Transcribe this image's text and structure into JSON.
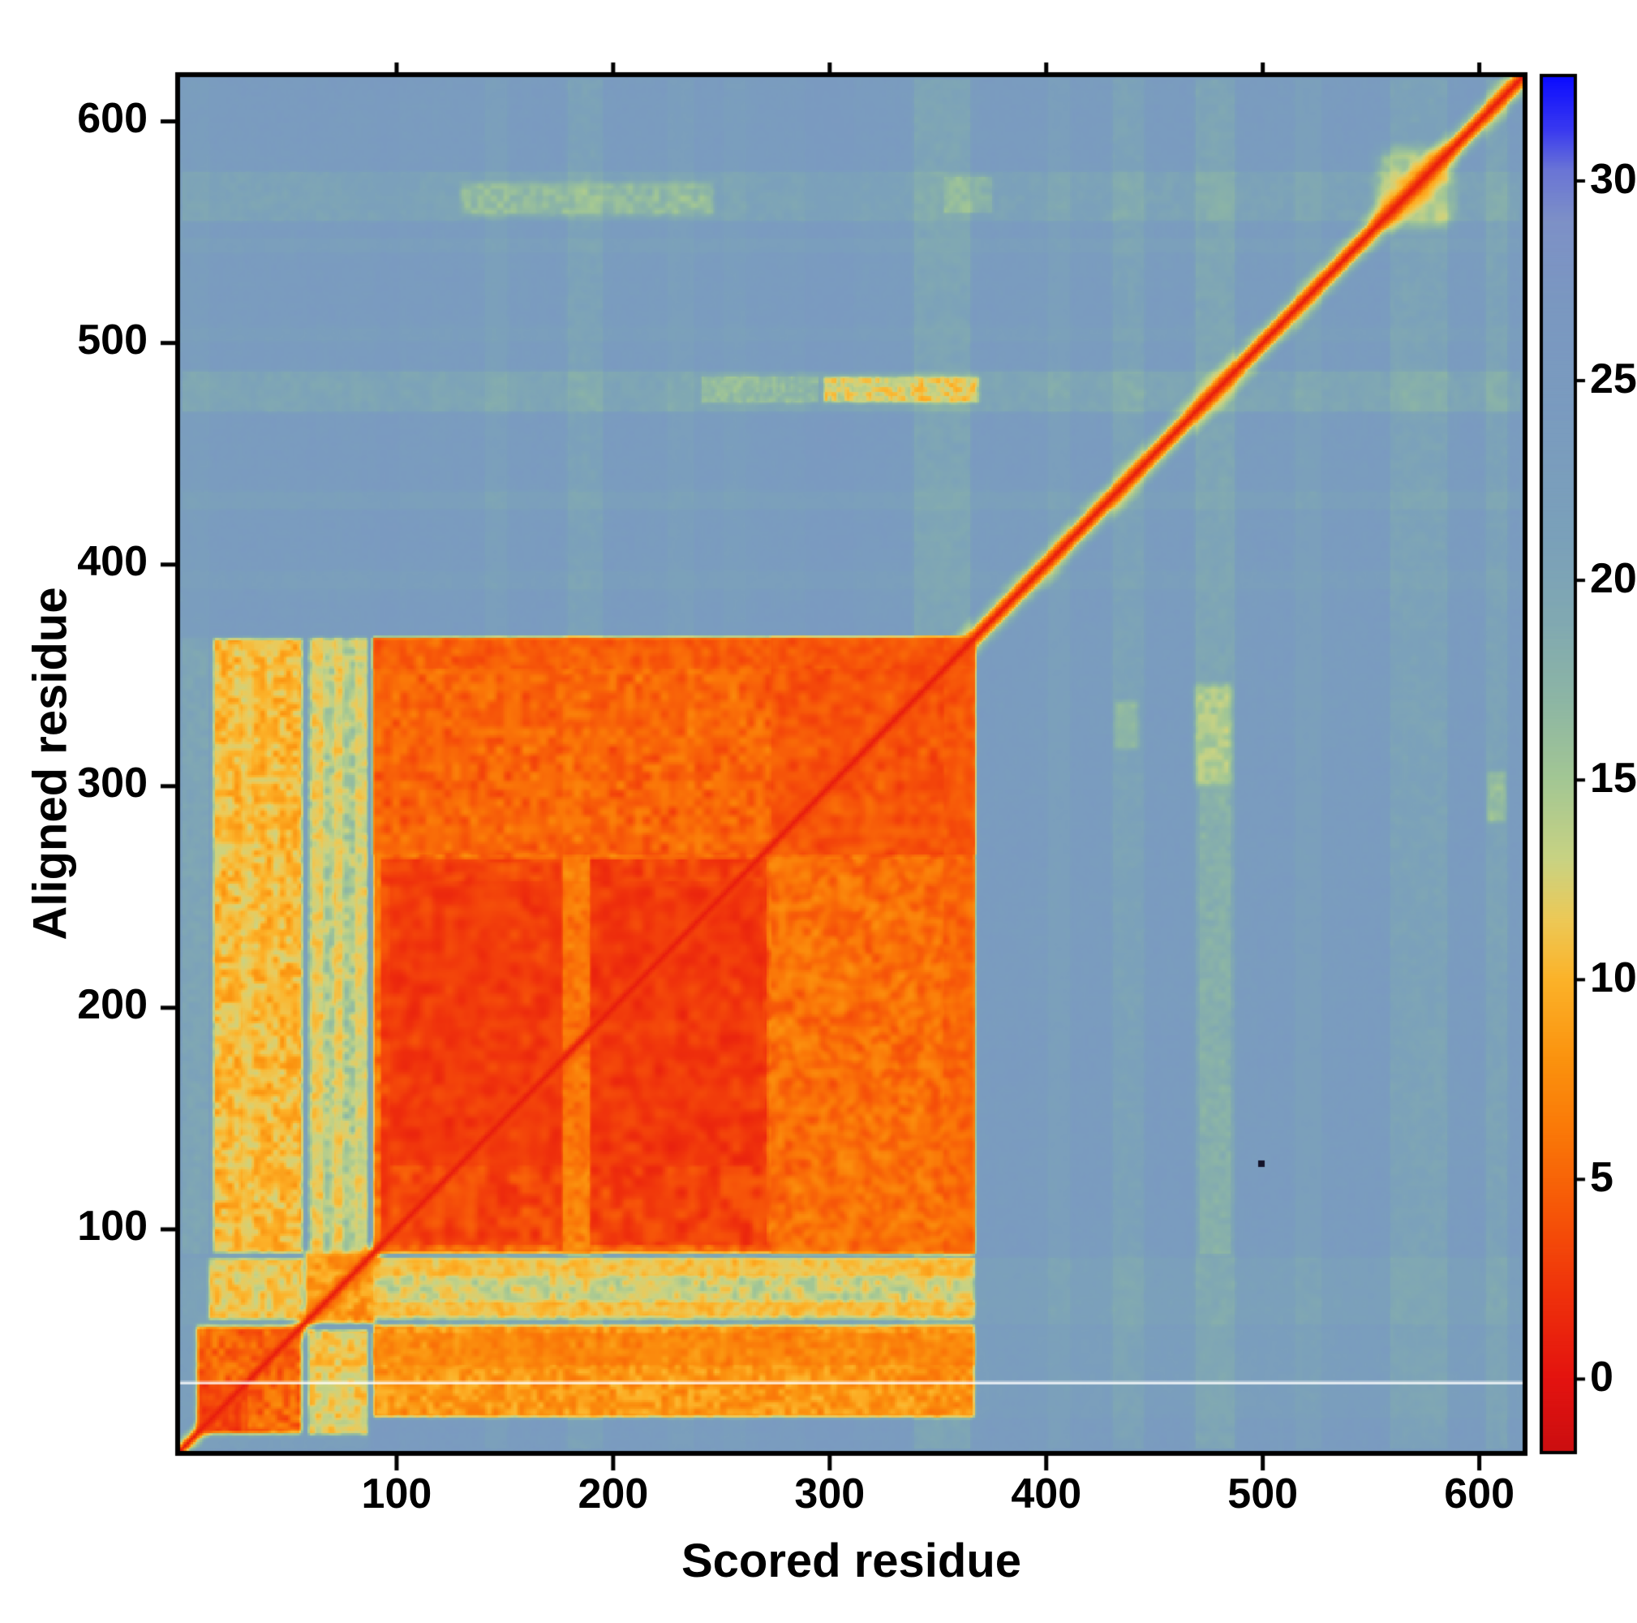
{
  "chart_data": {
    "type": "heatmap",
    "title": "",
    "xlabel": "Scored residue",
    "ylabel": "Aligned residue",
    "x_range": [
      0,
      620
    ],
    "y_range": [
      0,
      620
    ],
    "x_ticks": [
      100,
      200,
      300,
      400,
      500,
      600
    ],
    "y_ticks": [
      100,
      200,
      300,
      400,
      500,
      600
    ],
    "colorbar": {
      "vmin": -1.8,
      "vmax": 32.6,
      "ticks": [
        0,
        5,
        10,
        15,
        20,
        25,
        30
      ]
    },
    "colormap_stops": [
      [
        -1.8,
        "#cc0f10"
      ],
      [
        0,
        "#e41410"
      ],
      [
        2,
        "#ef300c"
      ],
      [
        4,
        "#f65309"
      ],
      [
        6,
        "#fa7608"
      ],
      [
        8,
        "#fb930f"
      ],
      [
        10,
        "#fcb32a"
      ],
      [
        11.5,
        "#edc957"
      ],
      [
        13,
        "#c9d383"
      ],
      [
        15,
        "#a3c794"
      ],
      [
        17,
        "#8db6a5"
      ],
      [
        19,
        "#81a9b2"
      ],
      [
        21,
        "#7ba1ba"
      ],
      [
        24,
        "#7a9cbf"
      ],
      [
        27,
        "#7b98c1"
      ],
      [
        29,
        "#7e91c7"
      ],
      [
        30.3,
        "#6a75d6"
      ],
      [
        31.3,
        "#3a3af0"
      ],
      [
        32.6,
        "#0d0dff"
      ]
    ],
    "base_value": 24.2,
    "white_line_y": 30,
    "marker_dot": {
      "x": 498,
      "y": 131
    },
    "diagonal": {
      "value": 0.7,
      "fringe_value": 3.5,
      "core_width": 3.5,
      "fringe_width": 8,
      "core_width_upper": 6,
      "fringe_width_upper": 13,
      "wide_from": 368
    },
    "regions": [
      {
        "x": [
          0,
          620
        ],
        "y": [
          0,
          620
        ],
        "v": 24.2,
        "n": 2.0,
        "s": 30,
        "b": 0.5
      },
      {
        "x": [
          0,
          620
        ],
        "y": [
          0,
          620
        ],
        "v": 24.2,
        "n": 1.6,
        "s": 3,
        "b": 0.55
      },
      {
        "x": [
          140,
          152
        ],
        "y": [
          0,
          620
        ],
        "v": 17.5,
        "n": 1.0,
        "s": 4,
        "b": 0.35
      },
      {
        "x": [
          178,
          196
        ],
        "y": [
          0,
          620
        ],
        "v": 16.5,
        "n": 1.2,
        "s": 4,
        "b": 0.45
      },
      {
        "x": [
          224,
          238
        ],
        "y": [
          0,
          620
        ],
        "v": 18.0,
        "n": 1.0,
        "s": 4,
        "b": 0.3
      },
      {
        "x": [
          250,
          262
        ],
        "y": [
          0,
          620
        ],
        "v": 18.5,
        "n": 1.0,
        "s": 4,
        "b": 0.25
      },
      {
        "x": [
          288,
          312
        ],
        "y": [
          0,
          620
        ],
        "v": 26.8,
        "n": 0.8,
        "s": 5,
        "b": 0.4
      },
      {
        "x": [
          90,
          102
        ],
        "y": [
          0,
          620
        ],
        "v": 26.5,
        "n": 0.8,
        "s": 5,
        "b": 0.35
      },
      {
        "x": [
          338,
          366
        ],
        "y": [
          0,
          620
        ],
        "v": 15.8,
        "n": 1.4,
        "s": 4,
        "b": 0.5
      },
      {
        "x": [
          400,
          412
        ],
        "y": [
          0,
          620
        ],
        "v": 18.0,
        "n": 1.0,
        "s": 4,
        "b": 0.35
      },
      {
        "x": [
          430,
          446
        ],
        "y": [
          0,
          620
        ],
        "v": 16.5,
        "n": 1.2,
        "s": 4,
        "b": 0.45
      },
      {
        "x": [
          468,
          488
        ],
        "y": [
          0,
          620
        ],
        "v": 15.5,
        "n": 1.4,
        "s": 4,
        "b": 0.5
      },
      {
        "x": [
          514,
          528
        ],
        "y": [
          0,
          620
        ],
        "v": 17.5,
        "n": 1.0,
        "s": 4,
        "b": 0.35
      },
      {
        "x": [
          558,
          586
        ],
        "y": [
          0,
          620
        ],
        "v": 16.2,
        "n": 1.4,
        "s": 4,
        "b": 0.45
      },
      {
        "x": [
          602,
          614
        ],
        "y": [
          0,
          620
        ],
        "v": 15.8,
        "n": 1.2,
        "s": 4,
        "b": 0.45
      },
      {
        "x": [
          0,
          14
        ],
        "y": [
          0,
          620
        ],
        "v": 20.0,
        "n": 1.0,
        "s": 4,
        "b": 0.3
      },
      {
        "x": [
          0,
          620
        ],
        "y": [
          388,
          398
        ],
        "v": 18.5,
        "n": 1.0,
        "s": 4,
        "b": 0.3
      },
      {
        "x": [
          0,
          620
        ],
        "y": [
          424,
          434
        ],
        "v": 17.5,
        "n": 1.0,
        "s": 4,
        "b": 0.35
      },
      {
        "x": [
          0,
          620
        ],
        "y": [
          468,
          488
        ],
        "v": 15.8,
        "n": 1.4,
        "s": 4,
        "b": 0.5
      },
      {
        "x": [
          0,
          620
        ],
        "y": [
          500,
          508
        ],
        "v": 18.5,
        "n": 1.0,
        "s": 4,
        "b": 0.25
      },
      {
        "x": [
          0,
          620
        ],
        "y": [
          540,
          548
        ],
        "v": 18.0,
        "n": 1.0,
        "s": 4,
        "b": 0.3
      },
      {
        "x": [
          0,
          620
        ],
        "y": [
          554,
          578
        ],
        "v": 16.2,
        "n": 1.4,
        "s": 4,
        "b": 0.45
      },
      {
        "x": [
          0,
          620
        ],
        "y": [
          56,
          88
        ],
        "v": 17.0,
        "n": 1.4,
        "s": 4,
        "b": 0.35
      },
      {
        "x": [
          0,
          620
        ],
        "y": [
          14,
          56
        ],
        "v": 19.0,
        "n": 1.2,
        "s": 4,
        "b": 0.25
      },
      {
        "x": [
          6,
          58
        ],
        "y": [
          6,
          58
        ],
        "v": 4.2,
        "n": 2.6,
        "s": 3,
        "b": 0.95,
        "f": 3
      },
      {
        "x": [
          8,
          32
        ],
        "y": [
          8,
          32
        ],
        "v": 2.6,
        "n": 2.0,
        "s": 3,
        "b": 0.8
      },
      {
        "x": [
          58,
          88
        ],
        "y": [
          6,
          56
        ],
        "v": 8.6,
        "n": 3.0,
        "s": 3,
        "b": 0.8,
        "f": 2
      },
      {
        "x": [
          12,
          58
        ],
        "y": [
          58,
          88
        ],
        "v": 8.8,
        "n": 3.0,
        "s": 3,
        "b": 0.8,
        "f": 2
      },
      {
        "x": [
          56,
          92
        ],
        "y": [
          56,
          92
        ],
        "v": 6.0,
        "n": 2.6,
        "s": 3,
        "b": 0.85,
        "f": 3
      },
      {
        "x": [
          88,
          368
        ],
        "y": [
          14,
          58
        ],
        "v": 7.0,
        "n": 2.4,
        "s": 3,
        "b": 0.92,
        "f": 2
      },
      {
        "x": [
          88,
          368
        ],
        "y": [
          38,
          54
        ],
        "v": 6.2,
        "n": 2.0,
        "s": 4,
        "b": 0.5
      },
      {
        "x": [
          88,
          368
        ],
        "y": [
          58,
          88
        ],
        "v": 11.5,
        "n": 3.0,
        "s": 3,
        "b": 0.85,
        "f": 2
      },
      {
        "x": [
          88,
          368
        ],
        "y": [
          60,
          68
        ],
        "v": 8.6,
        "n": 2.2,
        "s": 3,
        "b": 0.55
      },
      {
        "x": [
          88,
          368
        ],
        "y": [
          78,
          88
        ],
        "v": 8.8,
        "n": 2.2,
        "s": 3,
        "b": 0.5
      },
      {
        "x": [
          14,
          58
        ],
        "y": [
          88,
          368
        ],
        "v": 9.2,
        "n": 2.8,
        "s": 3,
        "b": 0.92,
        "f": 2
      },
      {
        "x": [
          28,
          34
        ],
        "y": [
          88,
          368
        ],
        "v": 12.5,
        "n": 1.5,
        "s": 4,
        "b": 0.4
      },
      {
        "x": [
          58,
          88
        ],
        "y": [
          88,
          368
        ],
        "v": 12.8,
        "n": 3.2,
        "s": 3,
        "b": 0.85,
        "f": 2
      },
      {
        "x": [
          60,
          67
        ],
        "y": [
          88,
          368
        ],
        "v": 8.8,
        "n": 2.4,
        "s": 3,
        "b": 0.5
      },
      {
        "x": [
          70,
          76
        ],
        "y": [
          88,
          368
        ],
        "v": 9.2,
        "n": 2.4,
        "s": 3,
        "b": 0.45
      },
      {
        "x": [
          80,
          87
        ],
        "y": [
          88,
          368
        ],
        "v": 9.5,
        "n": 2.4,
        "s": 3,
        "b": 0.4
      },
      {
        "x": [
          88,
          368
        ],
        "y": [
          88,
          368
        ],
        "v": 5.0,
        "n": 2.5,
        "s": 4,
        "b": 0.96,
        "f": 2
      },
      {
        "x": [
          92,
          178
        ],
        "y": [
          92,
          268
        ],
        "v": 2.8,
        "n": 1.9,
        "s": 5,
        "b": 0.85
      },
      {
        "x": [
          188,
          272
        ],
        "y": [
          92,
          268
        ],
        "v": 2.5,
        "n": 1.9,
        "s": 5,
        "b": 0.85
      },
      {
        "x": [
          96,
          270
        ],
        "y": [
          128,
          258
        ],
        "v": 2.0,
        "n": 1.6,
        "s": 6,
        "b": 0.5
      },
      {
        "x": [
          176,
          190
        ],
        "y": [
          88,
          368
        ],
        "v": 7.8,
        "n": 2.0,
        "s": 3,
        "b": 0.55
      },
      {
        "x": [
          88,
          368
        ],
        "y": [
          268,
          368
        ],
        "v": 4.6,
        "n": 2.4,
        "s": 4,
        "b": 0.6
      },
      {
        "x": [
          272,
          368
        ],
        "y": [
          88,
          268
        ],
        "v": 5.6,
        "n": 2.6,
        "s": 4,
        "b": 0.6
      },
      {
        "x": [
          272,
          368
        ],
        "y": [
          268,
          368
        ],
        "v": 3.4,
        "n": 2.0,
        "s": 5,
        "b": 0.6
      },
      {
        "x": [
          88,
          368
        ],
        "y": [
          352,
          368
        ],
        "v": 4.2,
        "n": 2.0,
        "s": 4,
        "b": 0.5
      },
      {
        "x": [
          352,
          368
        ],
        "y": [
          88,
          368
        ],
        "v": 4.6,
        "n": 2.0,
        "s": 4,
        "b": 0.45
      },
      {
        "x": [
          430,
          444
        ],
        "y": [
          315,
          340
        ],
        "v": 12.5,
        "n": 2.0,
        "s": 3,
        "b": 0.5,
        "f": 3
      },
      {
        "x": [
          466,
          488
        ],
        "y": [
          298,
          348
        ],
        "v": 10.5,
        "n": 2.6,
        "s": 3,
        "b": 0.6,
        "f": 4
      },
      {
        "x": [
          470,
          486
        ],
        "y": [
          88,
          300
        ],
        "v": 14.5,
        "n": 2.4,
        "s": 3,
        "b": 0.35
      },
      {
        "x": [
          602,
          614
        ],
        "y": [
          282,
          308
        ],
        "v": 11.5,
        "n": 2.2,
        "s": 3,
        "b": 0.5,
        "f": 3
      },
      {
        "x": [
          296,
          370
        ],
        "y": [
          472,
          486
        ],
        "v": 8.8,
        "n": 3.6,
        "s": 2,
        "b": 0.7,
        "f": 2
      },
      {
        "x": [
          240,
          296
        ],
        "y": [
          472,
          486
        ],
        "v": 12.5,
        "n": 3.0,
        "s": 2,
        "b": 0.45
      },
      {
        "x": [
          128,
          248
        ],
        "y": [
          556,
          574
        ],
        "v": 12.8,
        "n": 3.0,
        "s": 3,
        "b": 0.5,
        "f": 3
      },
      {
        "x": [
          352,
          376
        ],
        "y": [
          558,
          576
        ],
        "v": 13.0,
        "n": 2.6,
        "s": 3,
        "b": 0.4
      },
      {
        "x": [
          548,
          592
        ],
        "y": [
          548,
          592
        ],
        "v": 9.5,
        "n": 3.0,
        "s": 4,
        "b": 0.55,
        "f": 8
      },
      {
        "x": [
          0,
          14
        ],
        "y": [
          88,
          368
        ],
        "v": 16.5,
        "n": 2.0,
        "s": 3,
        "b": 0.45
      },
      {
        "x": [
          0,
          88
        ],
        "y": [
          0,
          8
        ],
        "v": 18.0,
        "n": 2.0,
        "s": 3,
        "b": 0.3
      }
    ]
  }
}
